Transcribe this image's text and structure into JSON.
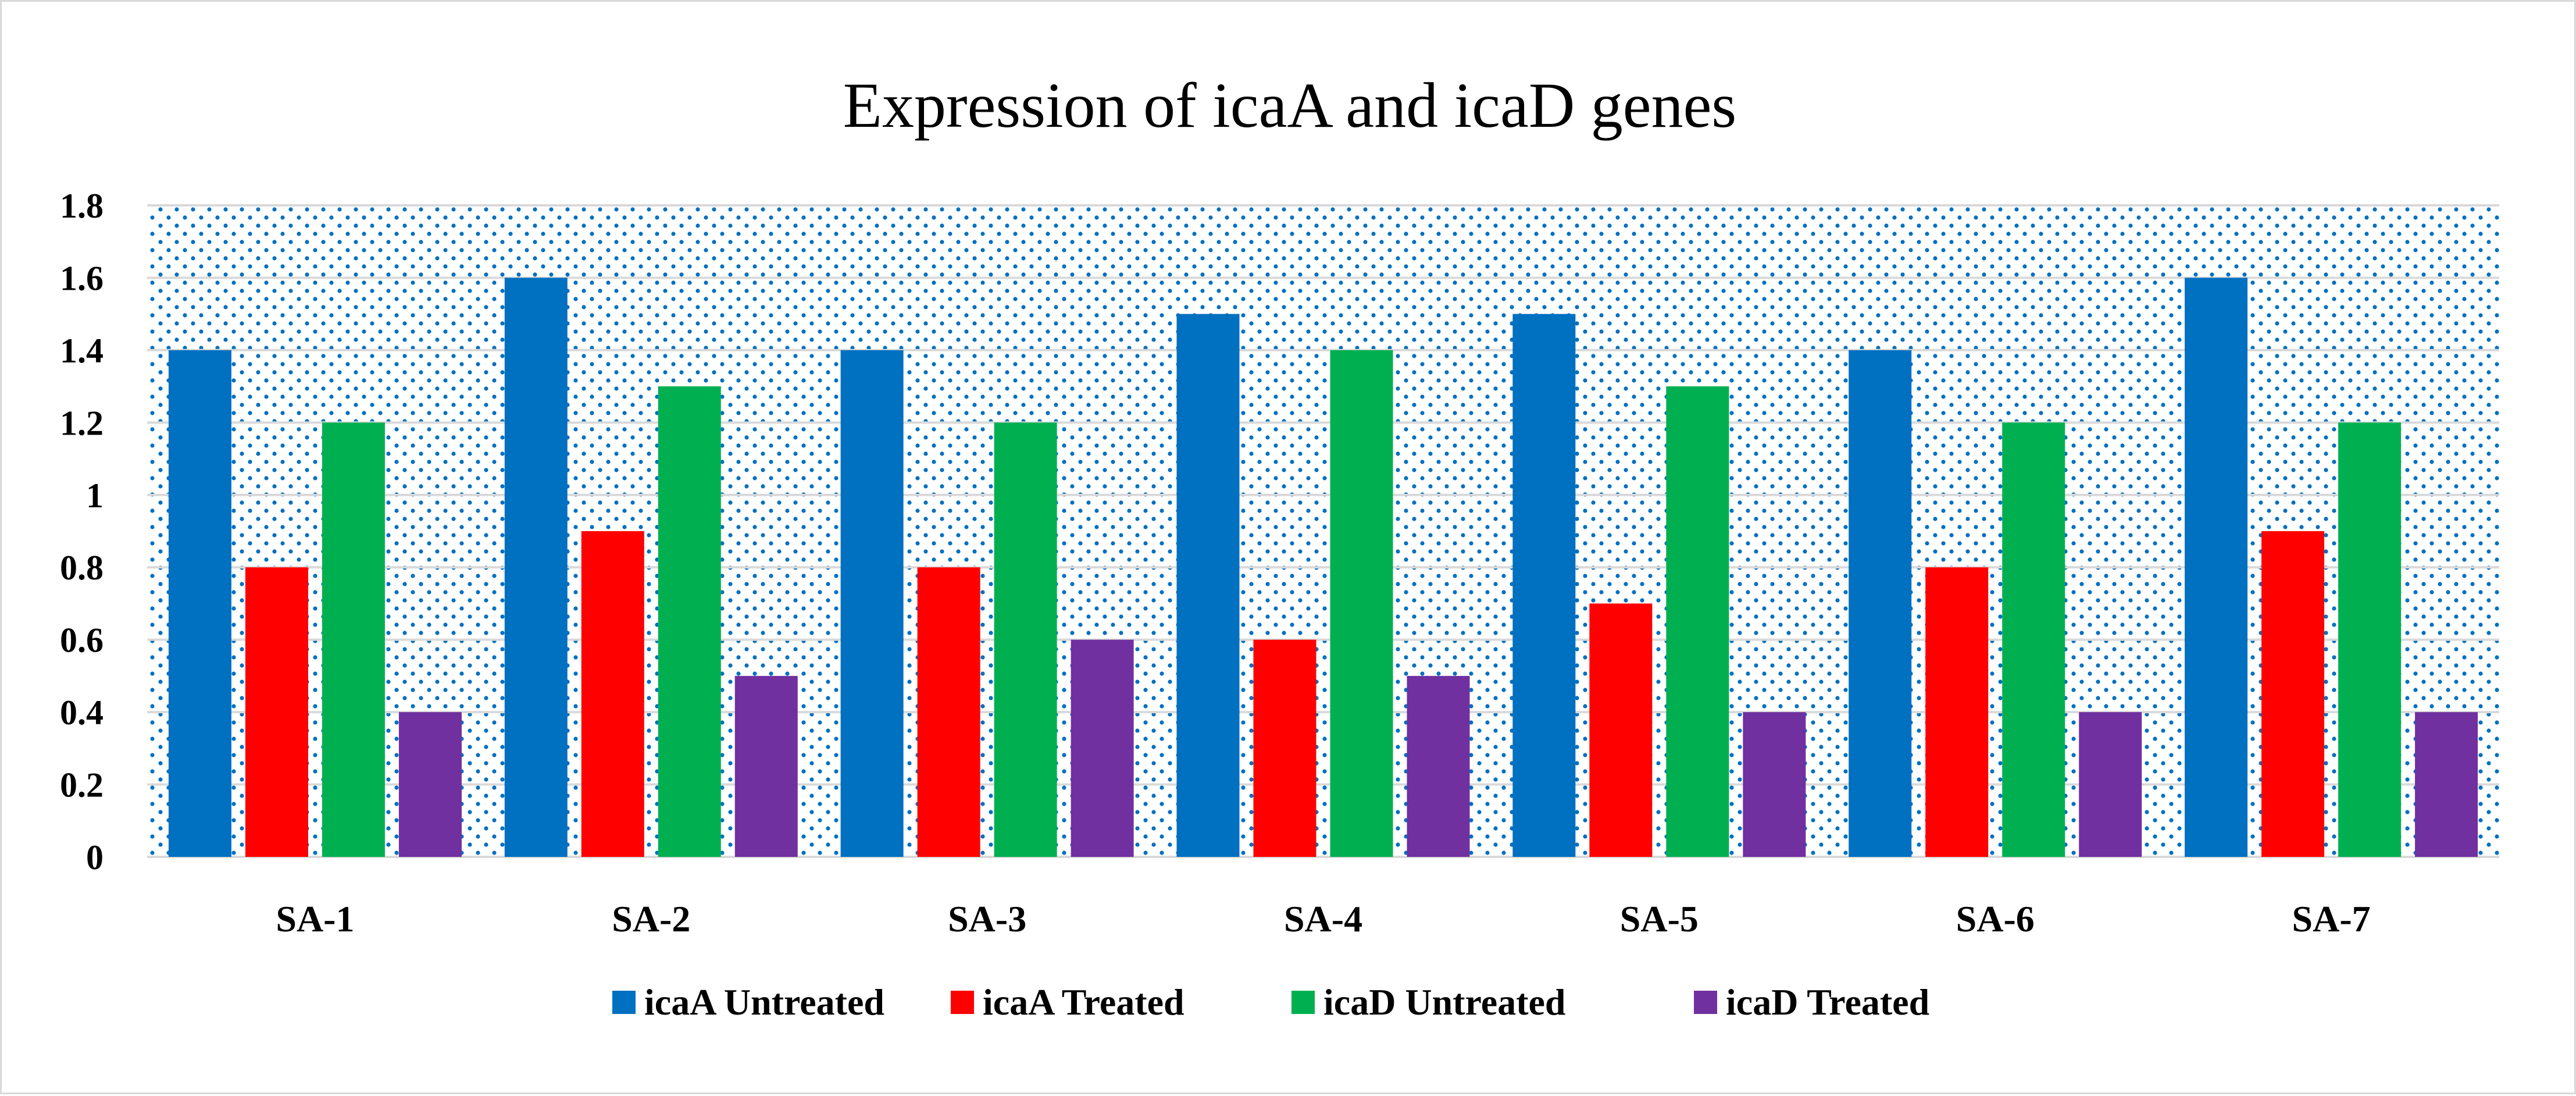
{
  "chart_data": {
    "type": "bar",
    "title": "Expression of icaA and icaD genes",
    "xlabel": "",
    "ylabel": "",
    "ylim": [
      0,
      1.8
    ],
    "yticks": [
      "0",
      "0.2",
      "0.4",
      "0.6",
      "0.8",
      "1",
      "1.2",
      "1.4",
      "1.6",
      "1.8"
    ],
    "grid": true,
    "legend_position": "bottom",
    "categories": [
      "SA-1",
      "SA-2",
      "SA-3",
      "SA-4",
      "SA-5",
      "SA-6",
      "SA-7"
    ],
    "series": [
      {
        "name": "icaA Untreated",
        "color": "#0070c0",
        "values": [
          1.4,
          1.6,
          1.4,
          1.5,
          1.5,
          1.4,
          1.6
        ]
      },
      {
        "name": "icaA Treated",
        "color": "#ff0000",
        "values": [
          0.8,
          0.9,
          0.8,
          0.6,
          0.7,
          0.8,
          0.9
        ]
      },
      {
        "name": "icaD Untreated",
        "color": "#00b050",
        "values": [
          1.2,
          1.3,
          1.2,
          1.4,
          1.3,
          1.2,
          1.2
        ]
      },
      {
        "name": "icaD Treated",
        "color": "#7030a0",
        "values": [
          0.4,
          0.5,
          0.6,
          0.5,
          0.4,
          0.4,
          0.4
        ]
      }
    ],
    "plot_background": "#ffffff",
    "dot_color": "#0070c0",
    "grid_color": "#d9d9d9"
  }
}
